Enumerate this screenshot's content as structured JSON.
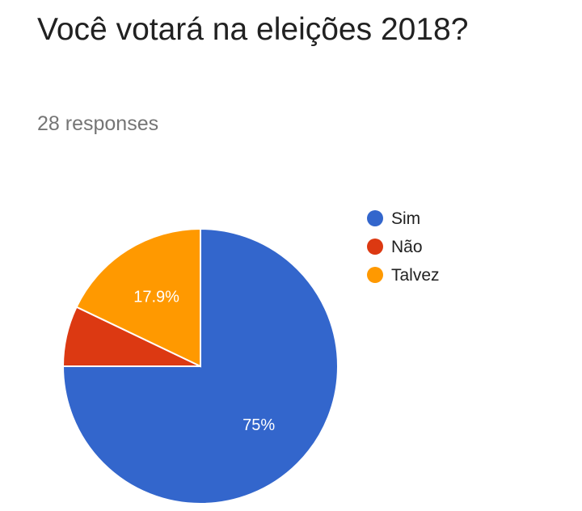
{
  "question": {
    "title": "Você votará na eleições 2018?",
    "responses": "28 responses"
  },
  "chart_data": {
    "type": "pie",
    "title": "",
    "total_responses": 28,
    "slices": [
      {
        "name": "Sim",
        "value": 75,
        "label": "75%",
        "color": "#3366cc"
      },
      {
        "name": "Não",
        "value": 7.1,
        "label": "",
        "color": "#dc3912"
      },
      {
        "name": "Talvez",
        "value": 17.9,
        "label": "17.9%",
        "color": "#ff9900"
      }
    ],
    "legend": {
      "position": "right",
      "entries": [
        "Sim",
        "Não",
        "Talvez"
      ]
    },
    "start_angle_deg": 0,
    "direction": "clockwise"
  }
}
